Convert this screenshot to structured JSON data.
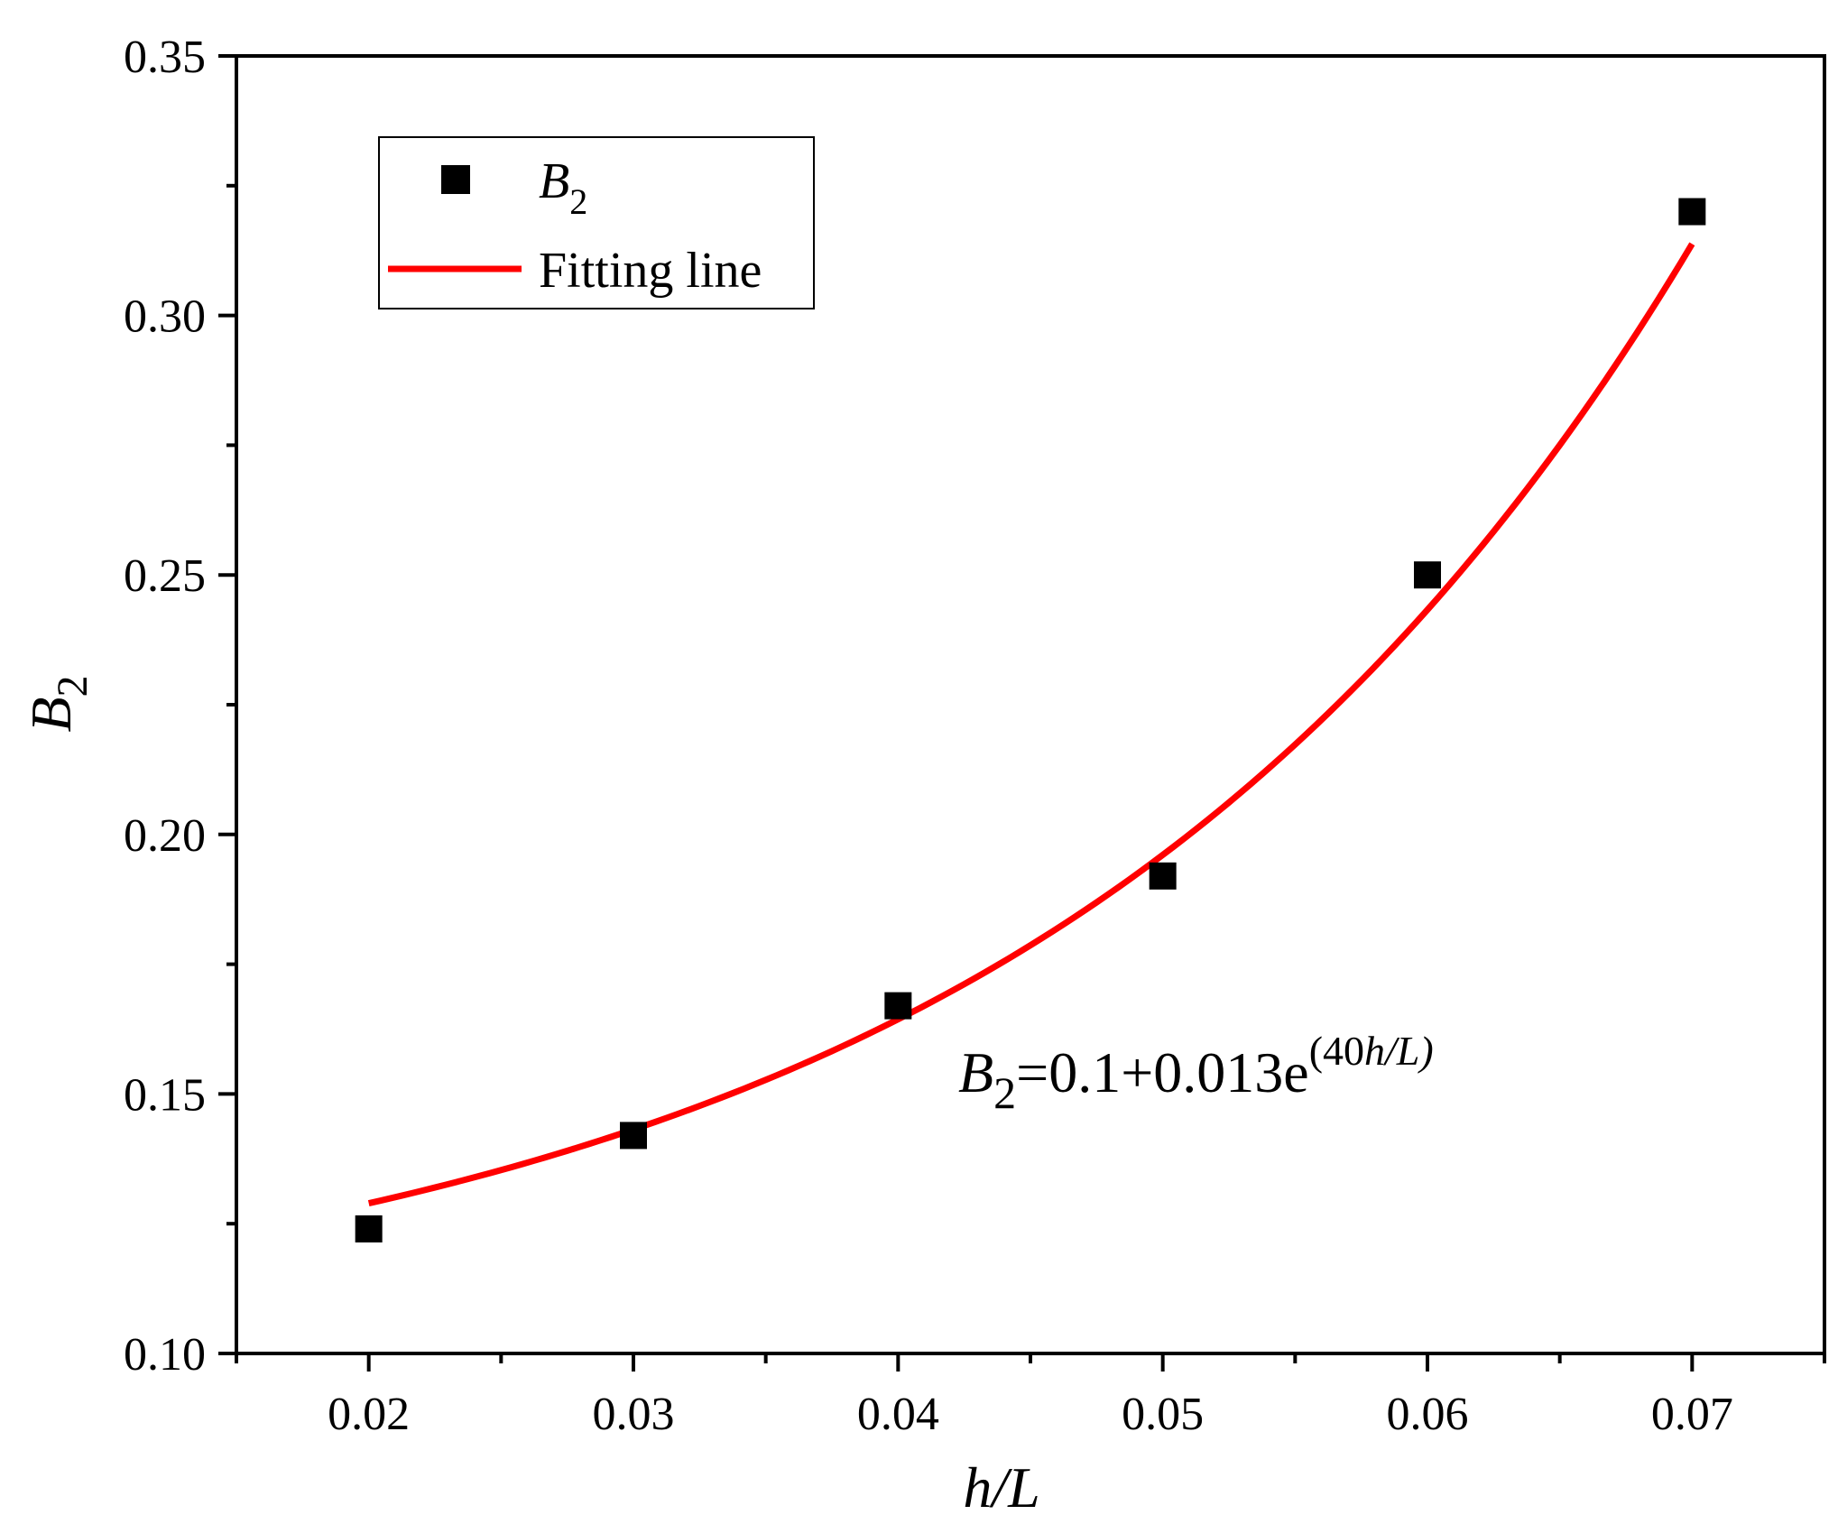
{
  "chart_data": {
    "type": "scatter",
    "xlabel": {
      "main": "h/L"
    },
    "ylabel": {
      "main": "B",
      "sub": "2"
    },
    "xlim": [
      0.015,
      0.075
    ],
    "ylim": [
      0.1,
      0.35
    ],
    "x_ticks": [
      0.02,
      0.03,
      0.04,
      0.05,
      0.06,
      0.07
    ],
    "x_tick_labels": [
      "0.02",
      "0.03",
      "0.04",
      "0.05",
      "0.06",
      "0.07"
    ],
    "y_ticks": [
      0.1,
      0.15,
      0.2,
      0.25,
      0.3,
      0.35
    ],
    "y_tick_labels": [
      "0.10",
      "0.15",
      "0.20",
      "0.25",
      "0.30",
      "0.35"
    ],
    "series": [
      {
        "name": "B2",
        "kind": "scatter",
        "marker": "square",
        "color": "#000000",
        "x": [
          0.02,
          0.03,
          0.04,
          0.05,
          0.06,
          0.07
        ],
        "y": [
          0.124,
          0.142,
          0.167,
          0.192,
          0.25,
          0.32
        ]
      },
      {
        "name": "Fitting line",
        "kind": "line",
        "color": "#ff0000",
        "function": "0.1+0.013*exp(40*x)",
        "x_range": [
          0.02,
          0.07
        ]
      }
    ],
    "legend": {
      "position": "top-left",
      "entries": [
        {
          "label_main": "B",
          "label_sub": "2"
        },
        {
          "label_main": "Fitting line"
        }
      ]
    },
    "annotation": {
      "lhs": "B",
      "lhs_sub": "2",
      "rhs": "=0.1+0.013e",
      "sup_open": "(40",
      "sup_var": "h/L)"
    }
  }
}
